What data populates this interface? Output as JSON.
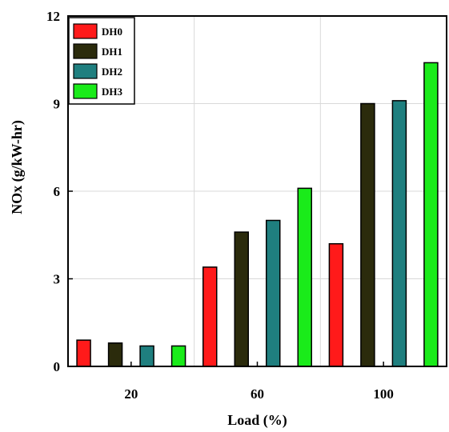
{
  "chart_data": {
    "type": "bar",
    "categories": [
      "20",
      "60",
      "100"
    ],
    "series": [
      {
        "name": "DH0",
        "color": "#ff1a1a",
        "values": [
          0.9,
          3.4,
          4.2
        ]
      },
      {
        "name": "DH1",
        "color": "#2b2b0c",
        "values": [
          0.8,
          4.6,
          9.0
        ]
      },
      {
        "name": "DH2",
        "color": "#1f7f7f",
        "values": [
          0.7,
          5.0,
          9.1
        ]
      },
      {
        "name": "DH3",
        "color": "#1aeb1a",
        "values": [
          0.7,
          6.1,
          10.4
        ]
      }
    ],
    "title": "",
    "xlabel": "Load (%)",
    "ylabel": "NOx (g/kW-hr)",
    "ylim": [
      0,
      12
    ],
    "yticks": [
      0,
      3,
      6,
      9,
      12
    ],
    "grid": true,
    "legend_position": "top-left"
  }
}
